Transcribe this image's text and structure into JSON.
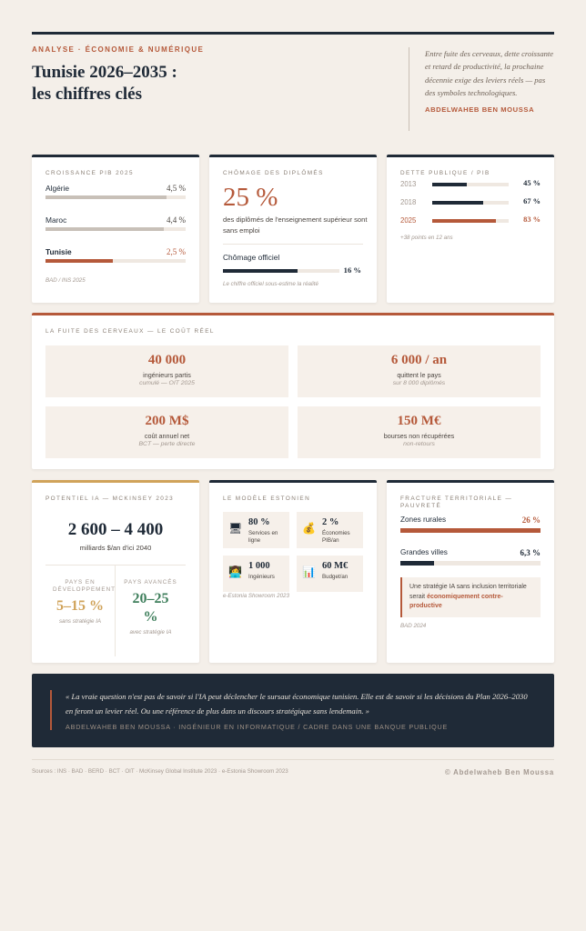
{
  "header": {
    "kicker": "ANALYSE · ÉCONOMIE & NUMÉRIQUE",
    "title_line1": "Tunisie 2026–2035 :",
    "title_line2": "les chiffres clés",
    "intro": "Entre fuite des cerveaux, dette croissante et retard de productivité, la prochaine décennie exige des leviers réels — pas des symboles technologiques.",
    "author": "ABDELWAHEB BEN MOUSSA"
  },
  "growth": {
    "label": "CROISSANCE PIB 2025",
    "items": [
      {
        "country": "Algérie",
        "value_label": "4,5 %",
        "value": 4.5
      },
      {
        "country": "Maroc",
        "value_label": "4,4 %",
        "value": 4.4
      },
      {
        "country": "Tunisie",
        "value_label": "2,5 %",
        "value": 2.5
      }
    ],
    "source": "BAD / INS 2025"
  },
  "unemployment": {
    "label": "CHÔMAGE DES DIPLÔMÉS",
    "value": "25 %",
    "description": "des diplômés de l'enseignement supérieur sont sans emploi",
    "official_label": "Chômage officiel",
    "official_value_label": "16 %",
    "official_value": 16,
    "note": "Le chiffre officiel sous-estime la réalité"
  },
  "debt": {
    "label": "DETTE PUBLIQUE / PIB",
    "items": [
      {
        "year": "2013",
        "value_label": "45 %",
        "value": 45
      },
      {
        "year": "2018",
        "value_label": "67 %",
        "value": 67
      },
      {
        "year": "2025",
        "value_label": "83 %",
        "value": 83
      }
    ],
    "note": "+38 points en 12 ans"
  },
  "brain_drain": {
    "label": "LA FUITE DES CERVEAUX — LE COÛT RÉEL",
    "tiles": [
      {
        "value": "40 000",
        "label": "ingénieurs partis",
        "sub": "cumulé — OIT 2025"
      },
      {
        "value": "6 000 / an",
        "label": "quittent le pays",
        "sub": "sur 8 000 diplômés"
      },
      {
        "value": "200 M$",
        "label": "coût annuel net",
        "sub": "BCT — perte directe"
      },
      {
        "value": "150 M€",
        "label": "bourses non récupérées",
        "sub": "non-retours"
      }
    ]
  },
  "ai": {
    "label": "POTENTIEL IA — MCKINSEY 2023",
    "value": "2 600 – 4 400",
    "unit": "milliards $/an d'ici 2040",
    "left": {
      "head": "PAYS EN DÉVELOPPEMENT",
      "value": "5–15 %",
      "sub": "sans stratégie IA"
    },
    "right": {
      "head": "PAYS AVANCÉS",
      "value": "20–25 %",
      "sub": "avec stratégie IA"
    }
  },
  "estonia": {
    "label": "LE MODÈLE ESTONIEN",
    "items": [
      {
        "icon": "🖥",
        "icon_name": "computer-icon",
        "value": "80 %",
        "label": "Services en ligne"
      },
      {
        "icon": "💰",
        "icon_name": "money-bag-icon",
        "value": "2 %",
        "label": "Économies PIB/an"
      },
      {
        "icon": "👩‍💻",
        "icon_name": "technologist-icon",
        "value": "1 000",
        "label": "Ingénieurs"
      },
      {
        "icon": "📊",
        "icon_name": "bar-chart-icon",
        "value": "60 M€",
        "label": "Budget/an"
      }
    ],
    "source": "e-Estonia Showroom 2023"
  },
  "territorial": {
    "label": "FRACTURE TERRITORIALE — PAUVRETÉ",
    "items": [
      {
        "zone": "Zones rurales",
        "value_label": "26 %",
        "value": 26,
        "color": "#b5593a"
      },
      {
        "zone": "Grandes villes",
        "value_label": "6,3 %",
        "value": 6.3,
        "color": "#1f2a37"
      }
    ],
    "callout_prefix": "Une stratégie IA sans inclusion territoriale serait ",
    "callout_bold": "économiquement contre-productive",
    "source": "BAD 2024"
  },
  "quote": {
    "text": "« La vraie question n'est pas de savoir si l'IA peut déclencher le sursaut économique tunisien. Elle est de savoir si les décisions du Plan 2026–2030 en feront un levier réel. Ou une référence de plus dans un discours stratégique sans lendemain. »",
    "author": "ABDELWAHEB BEN MOUSSA · INGÉNIEUR EN INFORMATIQUE / CADRE DANS UNE BANQUE PUBLIQUE"
  },
  "footer": {
    "sources": "Sources : INS · BAD · BERD · BCT · OIT · McKinsey Global Institute 2023 · e-Estonia Showroom 2023",
    "copyright": "© Abdelwaheb Ben Moussa"
  },
  "colors": {
    "accent": "#b5593a",
    "navy": "#1f2a37",
    "gold": "#d0a35a",
    "green": "#3f7f5c",
    "background": "#f4efe9"
  }
}
